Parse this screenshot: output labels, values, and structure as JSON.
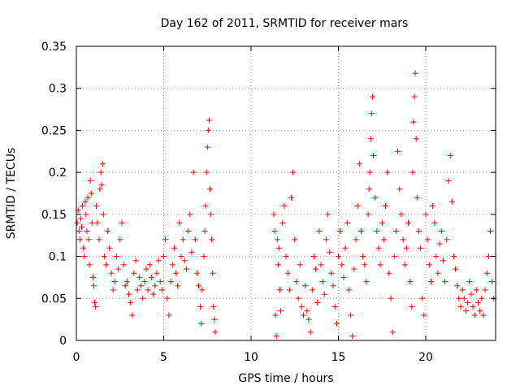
{
  "chart_data": {
    "type": "scatter",
    "title": "Day 162 of 2011, SRMTID for receiver mars",
    "xlabel": "GPS time / hours",
    "ylabel": "SRMTID / TECUs",
    "xlim": [
      0,
      24
    ],
    "ylim": [
      0,
      0.35
    ],
    "grid": true,
    "marker": "+",
    "marker_color": "#ff0000",
    "x_ticks": [
      0,
      5,
      10,
      15,
      20
    ],
    "x_tick_labels": [
      "0",
      "5",
      "10",
      "15",
      "20"
    ],
    "y_ticks": [
      0,
      0.05,
      0.1,
      0.15,
      0.2,
      0.25,
      0.3,
      0.35
    ],
    "y_tick_labels": [
      "0",
      "0.05",
      "0.1",
      "0.15",
      "0.2",
      "0.25",
      "0.3",
      "0.35"
    ],
    "series": [
      {
        "name": "SRMTID",
        "points": [
          [
            0.05,
            0.14
          ],
          [
            0.1,
            0.155
          ],
          [
            0.15,
            0.13
          ],
          [
            0.2,
            0.12
          ],
          [
            0.25,
            0.145
          ],
          [
            0.3,
            0.135
          ],
          [
            0.35,
            0.16
          ],
          [
            0.4,
            0.11
          ],
          [
            0.45,
            0.1
          ],
          [
            0.5,
            0.165
          ],
          [
            0.55,
            0.15
          ],
          [
            0.6,
            0.13
          ],
          [
            0.65,
            0.17
          ],
          [
            0.7,
            0.12
          ],
          [
            0.75,
            0.09
          ],
          [
            0.8,
            0.19
          ],
          [
            0.85,
            0.175
          ],
          [
            0.9,
            0.14
          ],
          [
            0.95,
            0.075
          ],
          [
            1.0,
            0.065
          ],
          [
            1.05,
            0.045
          ],
          [
            1.1,
            0.04
          ],
          [
            1.15,
            0.16
          ],
          [
            1.2,
            0.14
          ],
          [
            1.3,
            0.12
          ],
          [
            1.35,
            0.18
          ],
          [
            1.4,
            0.2
          ],
          [
            1.45,
            0.185
          ],
          [
            1.5,
            0.21
          ],
          [
            1.55,
            0.15
          ],
          [
            1.6,
            0.1
          ],
          [
            1.7,
            0.09
          ],
          [
            1.8,
            0.13
          ],
          [
            1.9,
            0.11
          ],
          [
            2.0,
            0.08
          ],
          [
            2.1,
            0.06
          ],
          [
            2.2,
            0.07
          ],
          [
            2.3,
            0.1
          ],
          [
            2.4,
            0.085
          ],
          [
            2.5,
            0.12
          ],
          [
            2.6,
            0.14
          ],
          [
            2.7,
            0.09
          ],
          [
            2.8,
            0.065
          ],
          [
            2.9,
            0.07
          ],
          [
            3.0,
            0.055
          ],
          [
            3.1,
            0.045
          ],
          [
            3.2,
            0.03
          ],
          [
            3.3,
            0.08
          ],
          [
            3.4,
            0.095
          ],
          [
            3.5,
            0.06
          ],
          [
            3.6,
            0.075
          ],
          [
            3.7,
            0.065
          ],
          [
            3.8,
            0.05
          ],
          [
            3.9,
            0.07
          ],
          [
            4.0,
            0.085
          ],
          [
            4.1,
            0.06
          ],
          [
            4.2,
            0.09
          ],
          [
            4.3,
            0.075
          ],
          [
            4.4,
            0.055
          ],
          [
            4.5,
            0.065
          ],
          [
            4.6,
            0.08
          ],
          [
            4.7,
            0.095
          ],
          [
            4.8,
            0.07
          ],
          [
            4.9,
            0.06
          ],
          [
            5.0,
            0.1
          ],
          [
            5.1,
            0.12
          ],
          [
            5.2,
            0.05
          ],
          [
            5.3,
            0.03
          ],
          [
            5.4,
            0.07
          ],
          [
            5.5,
            0.09
          ],
          [
            5.6,
            0.11
          ],
          [
            5.7,
            0.08
          ],
          [
            5.8,
            0.065
          ],
          [
            5.9,
            0.14
          ],
          [
            6.0,
            0.1
          ],
          [
            6.1,
            0.12
          ],
          [
            6.2,
            0.095
          ],
          [
            6.3,
            0.085
          ],
          [
            6.4,
            0.13
          ],
          [
            6.5,
            0.15
          ],
          [
            6.6,
            0.105
          ],
          [
            6.7,
            0.2
          ],
          [
            6.8,
            0.12
          ],
          [
            6.9,
            0.08
          ],
          [
            7.0,
            0.065
          ],
          [
            7.1,
            0.04
          ],
          [
            7.15,
            0.02
          ],
          [
            7.2,
            0.06
          ],
          [
            7.3,
            0.1
          ],
          [
            7.35,
            0.13
          ],
          [
            7.4,
            0.16
          ],
          [
            7.45,
            0.2
          ],
          [
            7.5,
            0.23
          ],
          [
            7.55,
            0.25
          ],
          [
            7.6,
            0.262
          ],
          [
            7.65,
            0.18
          ],
          [
            7.7,
            0.15
          ],
          [
            7.75,
            0.12
          ],
          [
            7.8,
            0.08
          ],
          [
            7.85,
            0.04
          ],
          [
            7.9,
            0.025
          ],
          [
            7.95,
            0.01
          ],
          [
            11.3,
            0.15
          ],
          [
            11.35,
            0.13
          ],
          [
            11.4,
            0.03
          ],
          [
            11.45,
            0.005
          ],
          [
            11.5,
            0.12
          ],
          [
            11.55,
            0.09
          ],
          [
            11.6,
            0.11
          ],
          [
            11.65,
            0.06
          ],
          [
            11.7,
            0.035
          ],
          [
            11.8,
            0.14
          ],
          [
            11.9,
            0.16
          ],
          [
            12.0,
            0.1
          ],
          [
            12.1,
            0.08
          ],
          [
            12.2,
            0.06
          ],
          [
            12.3,
            0.17
          ],
          [
            12.4,
            0.2
          ],
          [
            12.5,
            0.12
          ],
          [
            12.6,
            0.07
          ],
          [
            12.7,
            0.05
          ],
          [
            12.8,
            0.09
          ],
          [
            12.9,
            0.04
          ],
          [
            13.0,
            0.03
          ],
          [
            13.1,
            0.065
          ],
          [
            13.2,
            0.035
          ],
          [
            13.3,
            0.025
          ],
          [
            13.4,
            0.01
          ],
          [
            13.5,
            0.06
          ],
          [
            13.6,
            0.1
          ],
          [
            13.7,
            0.085
          ],
          [
            13.8,
            0.045
          ],
          [
            13.9,
            0.13
          ],
          [
            14.0,
            0.09
          ],
          [
            14.1,
            0.07
          ],
          [
            14.2,
            0.055
          ],
          [
            14.3,
            0.12
          ],
          [
            14.4,
            0.15
          ],
          [
            14.5,
            0.105
          ],
          [
            14.6,
            0.08
          ],
          [
            14.7,
            0.065
          ],
          [
            14.8,
            0.04
          ],
          [
            14.9,
            0.02
          ],
          [
            15.0,
            0.1
          ],
          [
            15.1,
            0.13
          ],
          [
            15.2,
            0.09
          ],
          [
            15.3,
            0.075
          ],
          [
            15.4,
            0.11
          ],
          [
            15.5,
            0.14
          ],
          [
            15.6,
            0.06
          ],
          [
            15.7,
            0.03
          ],
          [
            15.8,
            0.005
          ],
          [
            15.9,
            0.085
          ],
          [
            16.0,
            0.12
          ],
          [
            16.1,
            0.16
          ],
          [
            16.2,
            0.21
          ],
          [
            16.3,
            0.13
          ],
          [
            16.4,
            0.1
          ],
          [
            16.5,
            0.09
          ],
          [
            16.6,
            0.07
          ],
          [
            16.7,
            0.15
          ],
          [
            16.75,
            0.18
          ],
          [
            16.8,
            0.2
          ],
          [
            16.85,
            0.24
          ],
          [
            16.9,
            0.27
          ],
          [
            16.95,
            0.29
          ],
          [
            17.0,
            0.22
          ],
          [
            17.1,
            0.17
          ],
          [
            17.2,
            0.13
          ],
          [
            17.3,
            0.11
          ],
          [
            17.4,
            0.09
          ],
          [
            17.5,
            0.14
          ],
          [
            17.6,
            0.12
          ],
          [
            17.7,
            0.16
          ],
          [
            17.8,
            0.2
          ],
          [
            17.9,
            0.08
          ],
          [
            18.0,
            0.05
          ],
          [
            18.1,
            0.01
          ],
          [
            18.2,
            0.1
          ],
          [
            18.3,
            0.13
          ],
          [
            18.4,
            0.225
          ],
          [
            18.5,
            0.18
          ],
          [
            18.6,
            0.15
          ],
          [
            18.7,
            0.12
          ],
          [
            18.8,
            0.09
          ],
          [
            18.9,
            0.11
          ],
          [
            19.0,
            0.14
          ],
          [
            19.1,
            0.07
          ],
          [
            19.2,
            0.04
          ],
          [
            19.25,
            0.2
          ],
          [
            19.3,
            0.26
          ],
          [
            19.35,
            0.29
          ],
          [
            19.4,
            0.318
          ],
          [
            19.45,
            0.24
          ],
          [
            19.5,
            0.17
          ],
          [
            19.6,
            0.13
          ],
          [
            19.7,
            0.11
          ],
          [
            19.8,
            0.05
          ],
          [
            19.9,
            0.03
          ],
          [
            20.0,
            0.15
          ],
          [
            20.1,
            0.12
          ],
          [
            20.2,
            0.09
          ],
          [
            20.3,
            0.07
          ],
          [
            20.4,
            0.16
          ],
          [
            20.5,
            0.14
          ],
          [
            20.6,
            0.1
          ],
          [
            20.7,
            0.08
          ],
          [
            20.8,
            0.115
          ],
          [
            20.9,
            0.13
          ],
          [
            21.0,
            0.095
          ],
          [
            21.1,
            0.07
          ],
          [
            21.2,
            0.12
          ],
          [
            21.3,
            0.19
          ],
          [
            21.4,
            0.22
          ],
          [
            21.5,
            0.165
          ],
          [
            21.6,
            0.1
          ],
          [
            21.7,
            0.085
          ],
          [
            21.8,
            0.065
          ],
          [
            21.9,
            0.05
          ],
          [
            22.0,
            0.04
          ],
          [
            22.1,
            0.06
          ],
          [
            22.2,
            0.05
          ],
          [
            22.3,
            0.035
          ],
          [
            22.4,
            0.045
          ],
          [
            22.5,
            0.07
          ],
          [
            22.6,
            0.055
          ],
          [
            22.7,
            0.04
          ],
          [
            22.8,
            0.03
          ],
          [
            22.9,
            0.06
          ],
          [
            23.0,
            0.045
          ],
          [
            23.1,
            0.035
          ],
          [
            23.2,
            0.05
          ],
          [
            23.3,
            0.03
          ],
          [
            23.4,
            0.06
          ],
          [
            23.5,
            0.08
          ],
          [
            23.6,
            0.1
          ],
          [
            23.7,
            0.13
          ],
          [
            23.8,
            0.07
          ],
          [
            23.9,
            0.05
          ]
        ]
      }
    ]
  }
}
